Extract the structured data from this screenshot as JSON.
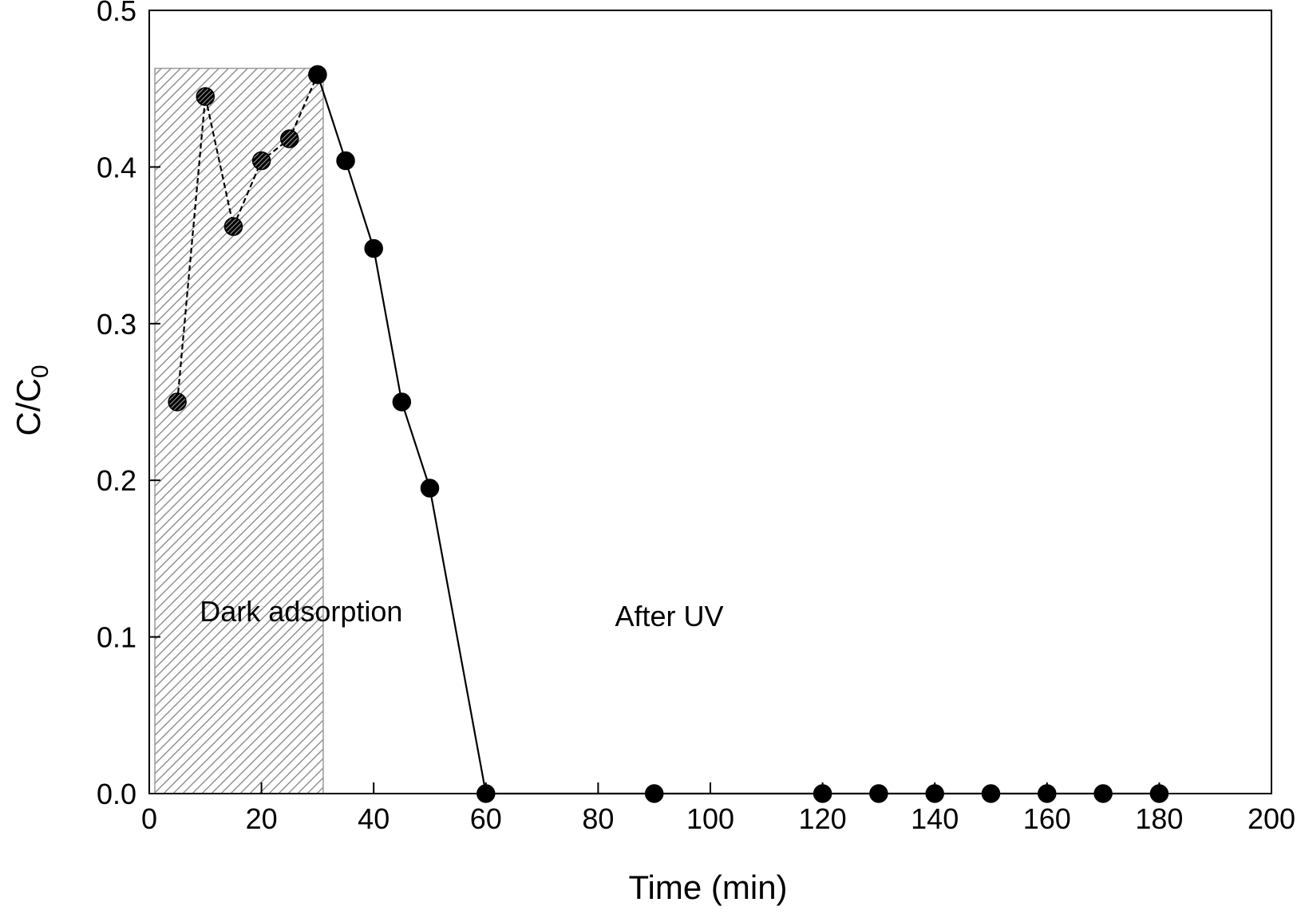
{
  "chart_data": {
    "type": "line",
    "title": "",
    "xlabel": "Time (min)",
    "ylabel_main": "C/C",
    "ylabel_sub": "0",
    "xlim": [
      0,
      200
    ],
    "ylim": [
      0,
      0.5
    ],
    "xticks": [
      0,
      20,
      40,
      60,
      80,
      100,
      120,
      140,
      160,
      180,
      200
    ],
    "xtick_labels": [
      "0",
      "20",
      "40",
      "60",
      "80",
      "100",
      "120",
      "140",
      "160",
      "180",
      "200"
    ],
    "yticks": [
      0.0,
      0.1,
      0.2,
      0.3,
      0.4,
      0.5
    ],
    "ytick_labels": [
      "0.0",
      "0.1",
      "0.2",
      "0.3",
      "0.4",
      "0.5"
    ],
    "grid": false,
    "shaded_region": {
      "label": "Dark adsorption",
      "x_range": [
        1,
        31
      ],
      "y_range": [
        0,
        0.463
      ],
      "pattern": "diagonal hatch"
    },
    "annotations": [
      {
        "text": "Dark adsorption",
        "x": 9,
        "y": 0.11
      },
      {
        "text": "After UV",
        "x": 83,
        "y": 0.107
      }
    ],
    "series": [
      {
        "name": "Dark adsorption",
        "line_style": "dashed",
        "marker": "hatched-circle",
        "x": [
          5,
          10,
          15,
          20,
          25,
          30
        ],
        "y": [
          0.25,
          0.445,
          0.362,
          0.404,
          0.418,
          0.459
        ]
      },
      {
        "name": "After UV",
        "line_style": "solid",
        "marker": "filled-circle",
        "x": [
          30,
          35,
          40,
          45,
          50,
          60,
          90,
          120,
          130,
          140,
          150,
          160,
          170,
          180
        ],
        "y": [
          0.459,
          0.404,
          0.348,
          0.25,
          0.195,
          0.0,
          0.0,
          0.0,
          0.0,
          0.0,
          0.0,
          0.0,
          0.0,
          0.0
        ]
      }
    ]
  }
}
